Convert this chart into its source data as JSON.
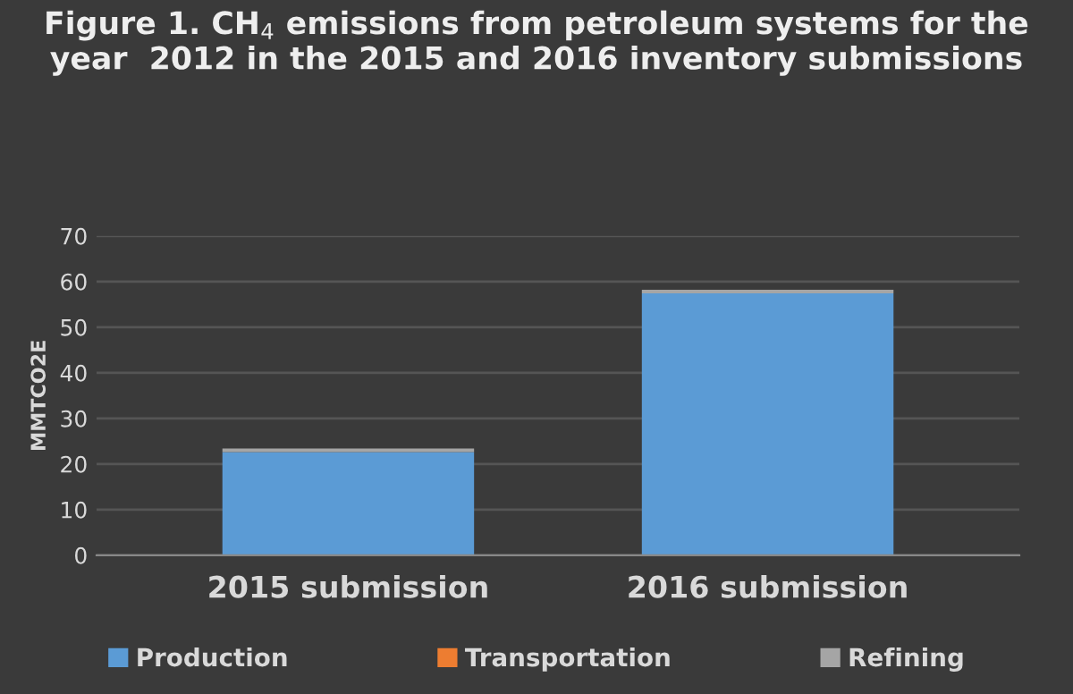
{
  "chart_data": {
    "type": "bar",
    "title": "Figure 1. CH$_{4}$ emissions from petroleum systems for the year  2012 in the 2015 and 2016 inventory submissions",
    "ylabel": "MMTCO2E",
    "categories": [
      "2015 submission",
      "2016 submission"
    ],
    "stacked": true,
    "series": [
      {
        "name": "Production",
        "color": "#5b9bd5",
        "values": [
          22.6,
          57.4
        ]
      },
      {
        "name": "Transportation",
        "color": "#ed7d31",
        "values": [
          null,
          null
        ]
      },
      {
        "name": "Refining",
        "color": "#a5a5a5",
        "values": [
          0.8,
          0.8
        ]
      }
    ],
    "ylim": [
      0,
      70
    ],
    "yticks": [
      0,
      10,
      20,
      30,
      40,
      50,
      60,
      70
    ],
    "grid": "y",
    "legend": "bottom"
  }
}
